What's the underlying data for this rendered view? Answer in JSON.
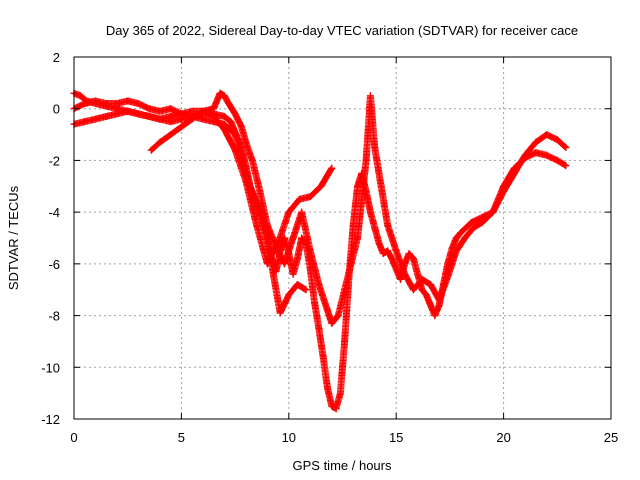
{
  "chart_data": {
    "type": "scatter",
    "title": "Day 365 of 2022, Sidereal Day-to-day VTEC variation (SDTVAR) for receiver cace",
    "xlabel": "GPS time / hours",
    "ylabel": "SDTVAR / TECUs",
    "xlim": [
      0,
      25
    ],
    "ylim": [
      -12,
      2
    ],
    "xticks": [
      0,
      5,
      10,
      15,
      20,
      25
    ],
    "yticks": [
      -12,
      -10,
      -8,
      -6,
      -4,
      -2,
      0,
      2
    ],
    "grid": true,
    "legend": "none",
    "marker": "+",
    "color": "#ff0000",
    "series": [
      {
        "name": "SDTVAR",
        "x": [
          0.0,
          0.3,
          0.6,
          1.0,
          1.5,
          2.0,
          2.5,
          3.0,
          3.5,
          4.0,
          4.5,
          5.0,
          5.5,
          6.0,
          6.5,
          7.0,
          7.3,
          7.5,
          7.8,
          8.0,
          8.2,
          8.5,
          8.8,
          9.0,
          9.2,
          9.4,
          9.6,
          9.8,
          10.0,
          10.2,
          10.4,
          10.6,
          10.8,
          11.0,
          11.2,
          11.4,
          11.6,
          11.8,
          12.0,
          12.2,
          12.4,
          12.6,
          12.8,
          13.0,
          13.2,
          13.4,
          13.6,
          13.8,
          14.0,
          14.2,
          14.4,
          14.6,
          14.8,
          15.0,
          15.2,
          15.4,
          15.6,
          15.8,
          16.0,
          16.2,
          16.4,
          16.6,
          16.8,
          17.0,
          17.2,
          17.4,
          17.6,
          17.8,
          18.0,
          18.5,
          19.0,
          19.5,
          20.0,
          20.5,
          21.0,
          21.5,
          22.0,
          22.5,
          22.9
        ],
        "y": [
          0.6,
          0.5,
          0.3,
          0.2,
          0.1,
          0.0,
          -0.1,
          -0.2,
          -0.3,
          -0.4,
          -0.5,
          -0.4,
          -0.3,
          -0.2,
          -0.2,
          -0.3,
          -0.5,
          -0.9,
          -1.5,
          -2.2,
          -3.0,
          -3.6,
          -4.2,
          -5.0,
          -5.8,
          -6.3,
          -5.5,
          -5.0,
          -5.6,
          -6.4,
          -5.8,
          -5.0,
          -5.2,
          -6.2,
          -7.5,
          -8.5,
          -9.6,
          -10.8,
          -11.5,
          -11.6,
          -11.0,
          -9.0,
          -6.5,
          -4.5,
          -3.0,
          -2.5,
          -3.2,
          -4.0,
          -4.6,
          -5.2,
          -5.6,
          -5.5,
          -5.8,
          -6.2,
          -6.6,
          -6.0,
          -5.6,
          -5.8,
          -6.4,
          -7.0,
          -7.2,
          -7.6,
          -8.0,
          -7.6,
          -6.8,
          -6.0,
          -5.4,
          -5.0,
          -4.8,
          -4.4,
          -4.2,
          -4.0,
          -3.0,
          -2.3,
          -1.9,
          -1.7,
          -1.8,
          -2.0,
          -2.2
        ]
      },
      {
        "name": "SDTVAR",
        "x": [
          0.0,
          0.5,
          1.0,
          1.5,
          2.0,
          2.5,
          3.0,
          3.5,
          4.0,
          4.5,
          5.0,
          5.5,
          6.0,
          6.5,
          6.8,
          7.0,
          7.2,
          7.5,
          7.8,
          8.0,
          8.3,
          8.6,
          9.0,
          9.4,
          9.8,
          10.2,
          10.6,
          11.0,
          11.4,
          11.8,
          12.0,
          12.3,
          12.6,
          12.9,
          13.2,
          13.4,
          13.6,
          13.8,
          14.0,
          14.3,
          14.6,
          15.0,
          15.4,
          15.8,
          16.2,
          16.6,
          17.0,
          17.4,
          17.8,
          18.2,
          18.6,
          19.0,
          19.5,
          20.0,
          20.5,
          21.0,
          21.5,
          22.0,
          22.5,
          22.9
        ],
        "y": [
          -0.6,
          -0.5,
          -0.4,
          -0.3,
          -0.2,
          -0.1,
          -0.2,
          -0.3,
          -0.4,
          -0.3,
          -0.2,
          -0.1,
          -0.1,
          0.0,
          0.6,
          0.5,
          0.2,
          -0.2,
          -0.7,
          -1.3,
          -2.0,
          -3.0,
          -4.5,
          -5.3,
          -6.0,
          -5.0,
          -4.0,
          -5.5,
          -6.8,
          -7.8,
          -8.3,
          -8.0,
          -7.0,
          -6.0,
          -5.0,
          -3.5,
          -2.0,
          0.5,
          -1.5,
          -3.0,
          -4.5,
          -5.5,
          -6.4,
          -7.0,
          -6.6,
          -6.8,
          -7.4,
          -6.5,
          -5.5,
          -5.0,
          -4.6,
          -4.4,
          -4.0,
          -3.2,
          -2.5,
          -1.8,
          -1.3,
          -1.0,
          -1.2,
          -1.5
        ]
      },
      {
        "name": "SDTVAR",
        "x": [
          3.6,
          4.0,
          4.5,
          5.0,
          5.5,
          6.0,
          6.5,
          7.0,
          7.5,
          8.0,
          8.5,
          9.0,
          9.5,
          10.0,
          10.5,
          11.0,
          11.5,
          12.0
        ],
        "y": [
          -1.6,
          -1.3,
          -1.0,
          -0.7,
          -0.4,
          -0.1,
          -0.3,
          -0.8,
          -1.6,
          -2.8,
          -4.5,
          -6.0,
          -5.2,
          -4.0,
          -3.5,
          -3.4,
          -3.0,
          -2.3
        ]
      },
      {
        "name": "SDTVAR",
        "x": [
          0.0,
          0.5,
          1.0,
          1.5,
          2.0,
          2.5,
          3.0,
          3.5,
          4.0,
          4.5,
          5.0,
          5.5,
          6.0,
          6.5,
          7.0,
          7.5,
          8.0,
          8.5,
          9.0,
          9.3,
          9.6,
          10.0,
          10.4,
          10.8
        ],
        "y": [
          0.0,
          0.2,
          0.3,
          0.2,
          0.2,
          0.3,
          0.2,
          0.0,
          -0.1,
          0.0,
          -0.2,
          -0.3,
          -0.4,
          -0.5,
          -0.6,
          -1.0,
          -2.5,
          -3.8,
          -5.0,
          -6.5,
          -7.9,
          -7.2,
          -6.8,
          -7.0
        ]
      }
    ]
  }
}
